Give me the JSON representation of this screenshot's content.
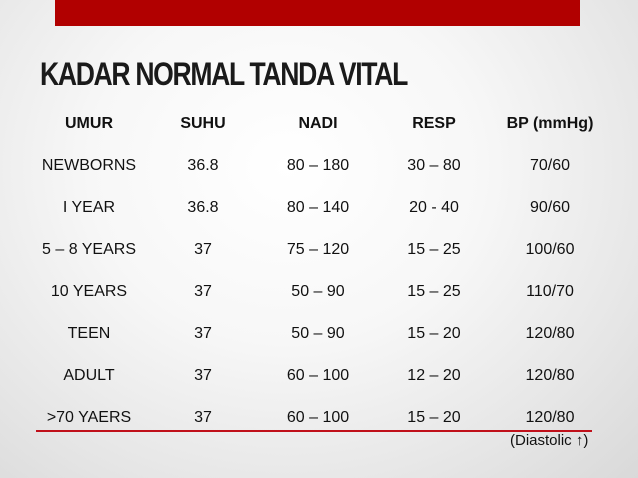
{
  "slide": {
    "title": "KADAR NORMAL TANDA VITAL",
    "accent_color": "#b10000",
    "footnote": "(Diastolic ↑)"
  },
  "table": {
    "headers": [
      "UMUR",
      "SUHU",
      "NADI",
      "RESP",
      "BP (mmHg)"
    ],
    "rows": [
      [
        "NEWBORNS",
        "36.8",
        "80 – 180",
        "30 – 80",
        "70/60"
      ],
      [
        "I YEAR",
        "36.8",
        "80 – 140",
        "20 - 40",
        "90/60"
      ],
      [
        "5 – 8 YEARS",
        "37",
        "75 – 120",
        "15 – 25",
        "100/60"
      ],
      [
        "10 YEARS",
        "37",
        "50 – 90",
        "15 – 25",
        "110/70"
      ],
      [
        "TEEN",
        "37",
        "50 – 90",
        "15 – 20",
        "120/80"
      ],
      [
        "ADULT",
        "37",
        "60 – 100",
        "12 – 20",
        "120/80"
      ],
      [
        ">70 YAERS",
        "37",
        "60 – 100",
        "15 – 20",
        "120/80"
      ]
    ]
  }
}
